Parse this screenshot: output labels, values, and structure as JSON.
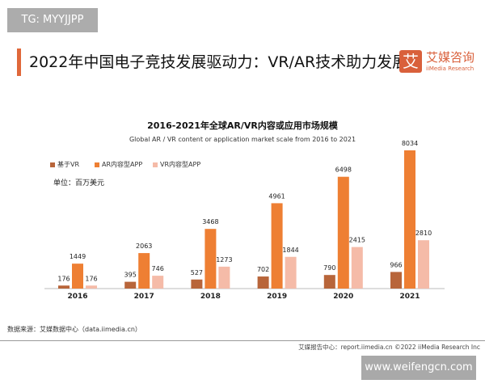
{
  "watermark_top": "TG: MYYJJPP",
  "header": {
    "title": "2022年中国电子竞技发展驱动力：VR/AR技术助力发展",
    "logo_mark": "艾",
    "logo_cn": "艾媒咨询",
    "logo_en": "iiMedia Research"
  },
  "chart_data": {
    "type": "bar",
    "title": "2016-2021年全球AR/VR内容或应用市场规模",
    "subtitle": "Global AR / VR content or application market scale from 2016 to 2021",
    "unit": "单位：百万美元",
    "categories": [
      "2016",
      "2017",
      "2018",
      "2019",
      "2020",
      "2021"
    ],
    "series": [
      {
        "name": "基于VR",
        "color": "#b8653a",
        "values": [
          176,
          395,
          527,
          702,
          790,
          966
        ]
      },
      {
        "name": "AR内容型APP",
        "color": "#ee7f33",
        "values": [
          1449,
          2063,
          3468,
          4961,
          6498,
          8034
        ]
      },
      {
        "name": "VR内容型APP",
        "color": "#f5bba8",
        "values": [
          176,
          746,
          1273,
          1844,
          2415,
          2810
        ]
      }
    ],
    "legend_position": "top-left",
    "grid": false,
    "ylim": [
      0,
      8034
    ]
  },
  "footer": {
    "source": "数据来源：艾媒数据中心（data.iimedia.cn）",
    "credit": "艾媒报告中心：report.iimedia.cn  ©2022  iiMedia Research Inc"
  },
  "watermark_bottom": "www.weifengcn.com"
}
